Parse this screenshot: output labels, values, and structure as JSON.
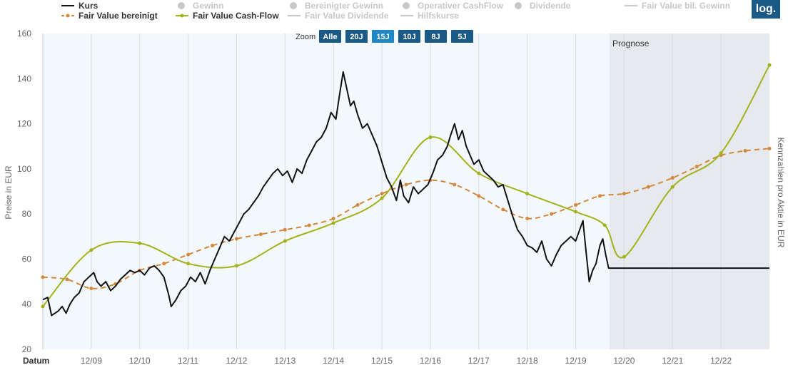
{
  "log_button": "log.",
  "zoom": {
    "label": "Zoom",
    "buttons": [
      "Alle",
      "20J",
      "15J",
      "10J",
      "8J",
      "5J"
    ],
    "active": "15J"
  },
  "prognose_label": "Prognose",
  "legend": [
    {
      "label": "Kurs",
      "color": "#111111",
      "style": "solid",
      "visible": true
    },
    {
      "label": "Gewinn",
      "color": "#c8c8c8",
      "style": "dot",
      "visible": false
    },
    {
      "label": "Bereinigter Gewinn",
      "color": "#c8c8c8",
      "style": "dot",
      "visible": false
    },
    {
      "label": "Operativer CashFlow",
      "color": "#c8c8c8",
      "style": "dot",
      "visible": false
    },
    {
      "label": "Dividende",
      "color": "#c8c8c8",
      "style": "dot",
      "visible": false
    },
    {
      "label": "Fair Value bil. Gewinn",
      "color": "#c8c8c8",
      "style": "line",
      "visible": false
    },
    {
      "label": "Fair Value bereinigt",
      "color": "#d4883c",
      "style": "dashed",
      "visible": true
    },
    {
      "label": "Fair Value Cash-Flow",
      "color": "#a3b21c",
      "style": "solid",
      "visible": true
    },
    {
      "label": "Fair Value Dividende",
      "color": "#c8c8c8",
      "style": "line",
      "visible": false
    },
    {
      "label": "Hilfskurse",
      "color": "#c8c8c8",
      "style": "line",
      "visible": false
    }
  ],
  "chart_data": {
    "type": "line",
    "xlabel": "Datum",
    "ylabel": "Preise in EUR",
    "ylabel_right": "Kennzahlen pro Aktie in EUR",
    "ylim": [
      20,
      160
    ],
    "xlim": [
      2008.0,
      2023.0
    ],
    "y_ticks": [
      20,
      40,
      60,
      80,
      100,
      120,
      140,
      160
    ],
    "x_ticks": [
      {
        "x": 2009,
        "label": "12/09"
      },
      {
        "x": 2010,
        "label": "12/10"
      },
      {
        "x": 2011,
        "label": "12/11"
      },
      {
        "x": 2012,
        "label": "12/12"
      },
      {
        "x": 2013,
        "label": "12/13"
      },
      {
        "x": 2014,
        "label": "12/14"
      },
      {
        "x": 2015,
        "label": "12/15"
      },
      {
        "x": 2016,
        "label": "12/16"
      },
      {
        "x": 2017,
        "label": "12/17"
      },
      {
        "x": 2018,
        "label": "12/18"
      },
      {
        "x": 2019,
        "label": "12/19"
      },
      {
        "x": 2020,
        "label": "12/20"
      },
      {
        "x": 2021,
        "label": "12/21"
      },
      {
        "x": 2022,
        "label": "12/22"
      }
    ],
    "forecast_start": 2019.7,
    "grid": true,
    "legend_position": "top",
    "series": [
      {
        "name": "Kurs",
        "color": "#111111",
        "points": [
          [
            2008.0,
            42
          ],
          [
            2008.1,
            43
          ],
          [
            2008.18,
            35
          ],
          [
            2008.25,
            36
          ],
          [
            2008.32,
            37
          ],
          [
            2008.4,
            39
          ],
          [
            2008.48,
            36
          ],
          [
            2008.56,
            40
          ],
          [
            2008.65,
            43
          ],
          [
            2008.75,
            45
          ],
          [
            2008.85,
            50
          ],
          [
            2008.95,
            52
          ],
          [
            2009.05,
            54
          ],
          [
            2009.12,
            50
          ],
          [
            2009.2,
            48
          ],
          [
            2009.3,
            50
          ],
          [
            2009.4,
            46
          ],
          [
            2009.5,
            48
          ],
          [
            2009.6,
            51
          ],
          [
            2009.7,
            53
          ],
          [
            2009.8,
            55
          ],
          [
            2009.9,
            54
          ],
          [
            2010.0,
            55
          ],
          [
            2010.1,
            53
          ],
          [
            2010.2,
            56
          ],
          [
            2010.3,
            57
          ],
          [
            2010.4,
            55
          ],
          [
            2010.5,
            52
          ],
          [
            2010.6,
            44
          ],
          [
            2010.65,
            39
          ],
          [
            2010.75,
            42
          ],
          [
            2010.85,
            46
          ],
          [
            2010.95,
            48
          ],
          [
            2011.05,
            52
          ],
          [
            2011.15,
            50
          ],
          [
            2011.25,
            54
          ],
          [
            2011.35,
            49
          ],
          [
            2011.45,
            55
          ],
          [
            2011.55,
            60
          ],
          [
            2011.65,
            65
          ],
          [
            2011.75,
            70
          ],
          [
            2011.85,
            68
          ],
          [
            2011.95,
            72
          ],
          [
            2012.05,
            76
          ],
          [
            2012.15,
            80
          ],
          [
            2012.25,
            82
          ],
          [
            2012.35,
            85
          ],
          [
            2012.45,
            88
          ],
          [
            2012.55,
            92
          ],
          [
            2012.65,
            95
          ],
          [
            2012.75,
            98
          ],
          [
            2012.85,
            100
          ],
          [
            2012.95,
            97
          ],
          [
            2013.05,
            99
          ],
          [
            2013.15,
            94
          ],
          [
            2013.25,
            100
          ],
          [
            2013.35,
            98
          ],
          [
            2013.45,
            104
          ],
          [
            2013.55,
            108
          ],
          [
            2013.65,
            112
          ],
          [
            2013.75,
            114
          ],
          [
            2013.85,
            118
          ],
          [
            2013.95,
            125
          ],
          [
            2014.05,
            122
          ],
          [
            2014.12,
            132
          ],
          [
            2014.2,
            143
          ],
          [
            2014.28,
            135
          ],
          [
            2014.35,
            128
          ],
          [
            2014.42,
            130
          ],
          [
            2014.5,
            124
          ],
          [
            2014.6,
            118
          ],
          [
            2014.7,
            120
          ],
          [
            2014.8,
            115
          ],
          [
            2014.9,
            110
          ],
          [
            2015.0,
            103
          ],
          [
            2015.1,
            96
          ],
          [
            2015.2,
            92
          ],
          [
            2015.3,
            86
          ],
          [
            2015.38,
            95
          ],
          [
            2015.45,
            88
          ],
          [
            2015.55,
            85
          ],
          [
            2015.65,
            92
          ],
          [
            2015.75,
            89
          ],
          [
            2015.85,
            91
          ],
          [
            2015.95,
            93
          ],
          [
            2016.05,
            98
          ],
          [
            2016.15,
            104
          ],
          [
            2016.25,
            106
          ],
          [
            2016.35,
            110
          ],
          [
            2016.42,
            115
          ],
          [
            2016.5,
            120
          ],
          [
            2016.58,
            113
          ],
          [
            2016.66,
            117
          ],
          [
            2016.74,
            110
          ],
          [
            2016.82,
            106
          ],
          [
            2016.9,
            102
          ],
          [
            2017.0,
            104
          ],
          [
            2017.1,
            99
          ],
          [
            2017.2,
            97
          ],
          [
            2017.3,
            95
          ],
          [
            2017.4,
            92
          ],
          [
            2017.5,
            93
          ],
          [
            2017.6,
            86
          ],
          [
            2017.7,
            79
          ],
          [
            2017.8,
            73
          ],
          [
            2017.9,
            70
          ],
          [
            2018.0,
            66
          ],
          [
            2018.1,
            65
          ],
          [
            2018.2,
            63
          ],
          [
            2018.3,
            68
          ],
          [
            2018.4,
            60
          ],
          [
            2018.5,
            57
          ],
          [
            2018.6,
            62
          ],
          [
            2018.7,
            66
          ],
          [
            2018.8,
            68
          ],
          [
            2018.9,
            70
          ],
          [
            2019.0,
            68
          ],
          [
            2019.1,
            74
          ],
          [
            2019.15,
            77
          ],
          [
            2019.22,
            62
          ],
          [
            2019.28,
            50
          ],
          [
            2019.35,
            55
          ],
          [
            2019.42,
            58
          ],
          [
            2019.5,
            66
          ],
          [
            2019.56,
            69
          ],
          [
            2019.62,
            62
          ],
          [
            2019.68,
            56
          ],
          [
            2019.72,
            56
          ],
          [
            2020.0,
            56
          ],
          [
            2021.0,
            56
          ],
          [
            2022.0,
            56
          ],
          [
            2023.0,
            56
          ]
        ]
      },
      {
        "name": "Fair Value bereinigt",
        "color": "#d4883c",
        "points": [
          [
            2008.0,
            52
          ],
          [
            2008.5,
            51
          ],
          [
            2009.0,
            47
          ],
          [
            2009.5,
            49
          ],
          [
            2010.0,
            55
          ],
          [
            2010.5,
            58
          ],
          [
            2011.0,
            62
          ],
          [
            2011.5,
            66
          ],
          [
            2012.0,
            69
          ],
          [
            2012.5,
            71
          ],
          [
            2013.0,
            73
          ],
          [
            2013.5,
            75
          ],
          [
            2014.0,
            78
          ],
          [
            2014.5,
            84
          ],
          [
            2015.0,
            89
          ],
          [
            2015.5,
            93
          ],
          [
            2016.0,
            95
          ],
          [
            2016.5,
            93
          ],
          [
            2017.0,
            88
          ],
          [
            2017.5,
            82
          ],
          [
            2018.0,
            78
          ],
          [
            2018.5,
            80
          ],
          [
            2019.0,
            84
          ],
          [
            2019.5,
            88
          ],
          [
            2020.0,
            89
          ],
          [
            2020.5,
            92
          ],
          [
            2021.0,
            96
          ],
          [
            2021.5,
            101
          ],
          [
            2022.0,
            106
          ],
          [
            2022.5,
            108
          ],
          [
            2023.0,
            109
          ]
        ]
      },
      {
        "name": "Fair Value Cash-Flow",
        "color": "#a3b21c",
        "points": [
          [
            2008.0,
            39
          ],
          [
            2009.0,
            64
          ],
          [
            2010.0,
            67
          ],
          [
            2011.0,
            58
          ],
          [
            2012.0,
            57
          ],
          [
            2013.0,
            68
          ],
          [
            2014.0,
            76
          ],
          [
            2015.0,
            87
          ],
          [
            2016.0,
            114
          ],
          [
            2017.0,
            98
          ],
          [
            2018.0,
            89
          ],
          [
            2019.0,
            81
          ],
          [
            2019.6,
            75
          ],
          [
            2020.0,
            61
          ],
          [
            2021.0,
            92
          ],
          [
            2022.0,
            107
          ],
          [
            2023.0,
            146
          ]
        ],
        "markers": [
          2008.0,
          2009.0,
          2010.0,
          2011.0,
          2012.0,
          2013.0,
          2014.0,
          2015.0,
          2016.0,
          2017.0,
          2018.0,
          2019.0,
          2019.6,
          2020.0,
          2021.0,
          2022.0,
          2023.0
        ]
      }
    ]
  }
}
